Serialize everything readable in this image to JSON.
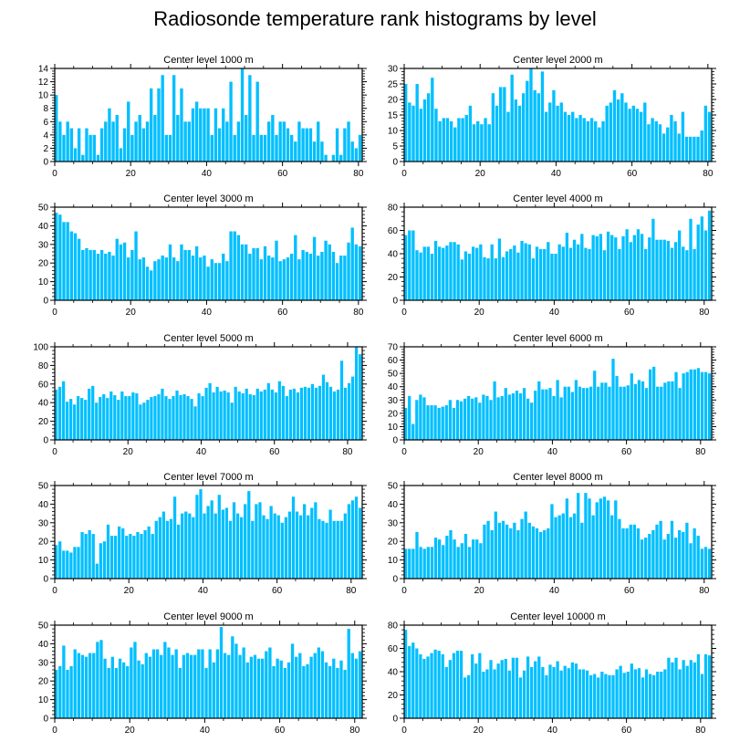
{
  "title": "Radiosonde temperature rank histograms by level",
  "bar_color": "#00bfff",
  "chart_data": [
    {
      "type": "bar",
      "title": "Center level 1000 m",
      "x_start": 0,
      "ylim": [
        0,
        14
      ],
      "yticks": [
        0,
        2,
        4,
        6,
        8,
        10,
        12,
        14
      ],
      "xticks": [
        0,
        20,
        40,
        60,
        80
      ],
      "values": [
        10,
        6,
        4,
        6,
        5,
        2,
        5,
        1,
        5,
        4,
        4,
        1,
        5,
        6,
        8,
        6,
        7,
        2,
        5,
        9,
        4,
        6,
        7,
        5,
        6,
        11,
        7,
        11,
        13,
        4,
        4,
        13,
        7,
        11,
        6,
        6,
        8,
        9,
        8,
        8,
        8,
        4,
        8,
        5,
        8,
        6,
        12,
        4,
        6,
        14,
        7,
        13,
        4,
        12,
        4,
        4,
        6,
        7,
        4,
        6,
        6,
        5,
        4,
        3,
        6,
        5,
        5,
        5,
        3,
        6,
        3,
        1,
        0,
        1,
        5,
        1,
        5,
        6,
        3,
        2,
        4
      ]
    },
    {
      "type": "bar",
      "title": "Center level 2000 m",
      "x_start": 0,
      "ylim": [
        0,
        30
      ],
      "yticks": [
        0,
        5,
        10,
        15,
        20,
        25,
        30
      ],
      "xticks": [
        0,
        20,
        40,
        60,
        80
      ],
      "values": [
        25,
        19,
        18,
        25,
        17,
        20,
        22,
        27,
        17,
        13,
        14,
        14,
        13,
        11,
        14,
        14,
        15,
        18,
        12,
        13,
        12,
        14,
        12,
        22,
        18,
        24,
        24,
        16,
        28,
        20,
        18,
        22,
        26,
        30,
        23,
        22,
        29,
        16,
        19,
        23,
        18,
        19,
        16,
        15,
        16,
        14,
        15,
        14,
        13,
        14,
        13,
        11,
        13,
        18,
        19,
        23,
        20,
        22,
        19,
        17,
        18,
        17,
        16,
        19,
        12,
        14,
        13,
        12,
        9,
        11,
        15,
        13,
        9,
        16,
        8,
        8,
        8,
        8,
        10,
        18,
        16
      ]
    },
    {
      "type": "bar",
      "title": "Center level 3000 m",
      "x_start": 0,
      "ylim": [
        0,
        50
      ],
      "yticks": [
        0,
        10,
        20,
        30,
        40,
        50
      ],
      "xticks": [
        0,
        20,
        40,
        60,
        80
      ],
      "values": [
        47,
        46,
        42,
        42,
        37,
        36,
        33,
        27,
        28,
        27,
        27,
        25,
        27,
        25,
        26,
        24,
        33,
        30,
        31,
        23,
        27,
        37,
        22,
        23,
        18,
        16,
        21,
        22,
        24,
        23,
        30,
        23,
        21,
        30,
        27,
        27,
        24,
        29,
        23,
        24,
        18,
        22,
        20,
        20,
        25,
        21,
        37,
        37,
        35,
        30,
        30,
        25,
        28,
        28,
        22,
        29,
        24,
        23,
        32,
        21,
        22,
        23,
        25,
        35,
        22,
        27,
        26,
        25,
        34,
        24,
        26,
        32,
        30,
        26,
        20,
        24,
        24,
        31,
        39,
        30,
        29
      ]
    },
    {
      "type": "bar",
      "title": "Center level 4000 m",
      "x_start": 0,
      "ylim": [
        0,
        80
      ],
      "yticks": [
        0,
        20,
        40,
        60,
        80
      ],
      "xticks": [
        0,
        20,
        40,
        60,
        80
      ],
      "values": [
        56,
        60,
        60,
        43,
        41,
        46,
        46,
        40,
        51,
        46,
        45,
        47,
        50,
        50,
        48,
        35,
        42,
        40,
        46,
        45,
        48,
        37,
        36,
        48,
        36,
        53,
        37,
        42,
        44,
        47,
        41,
        51,
        49,
        48,
        36,
        46,
        44,
        44,
        50,
        40,
        40,
        48,
        46,
        58,
        45,
        52,
        48,
        57,
        45,
        44,
        56,
        55,
        57,
        43,
        59,
        56,
        54,
        44,
        55,
        61,
        50,
        56,
        61,
        57,
        44,
        54,
        70,
        52,
        52,
        52,
        51,
        45,
        50,
        60,
        46,
        43,
        70,
        44,
        65,
        72,
        60,
        77
      ]
    },
    {
      "type": "bar",
      "title": "Center level 5000 m",
      "x_start": 0,
      "ylim": [
        0,
        100
      ],
      "yticks": [
        0,
        20,
        40,
        60,
        80,
        100
      ],
      "xticks": [
        0,
        20,
        40,
        60,
        80
      ],
      "values": [
        54,
        57,
        63,
        41,
        44,
        38,
        47,
        45,
        43,
        55,
        58,
        40,
        46,
        49,
        45,
        52,
        48,
        43,
        52,
        47,
        47,
        51,
        50,
        38,
        40,
        43,
        46,
        47,
        49,
        55,
        47,
        44,
        47,
        53,
        48,
        49,
        47,
        44,
        36,
        50,
        47,
        56,
        61,
        51,
        57,
        52,
        53,
        51,
        40,
        57,
        52,
        50,
        55,
        49,
        48,
        55,
        52,
        54,
        61,
        54,
        51,
        63,
        58,
        47,
        54,
        55,
        51,
        56,
        57,
        56,
        60,
        56,
        58,
        70,
        62,
        57,
        52,
        54,
        85,
        56,
        61,
        68,
        100,
        92
      ]
    },
    {
      "type": "bar",
      "title": "Center level 6000 m",
      "x_start": 0,
      "ylim": [
        0,
        70
      ],
      "yticks": [
        0,
        10,
        20,
        30,
        40,
        50,
        60,
        70
      ],
      "xticks": [
        0,
        20,
        40,
        60,
        80
      ],
      "values": [
        24,
        33,
        12,
        30,
        34,
        32,
        26,
        26,
        26,
        24,
        25,
        26,
        30,
        24,
        30,
        29,
        31,
        33,
        31,
        32,
        28,
        34,
        33,
        30,
        44,
        32,
        33,
        39,
        34,
        35,
        37,
        35,
        39,
        31,
        28,
        37,
        44,
        38,
        38,
        39,
        33,
        45,
        32,
        40,
        40,
        36,
        45,
        40,
        39,
        39,
        40,
        52,
        40,
        43,
        43,
        40,
        61,
        48,
        40,
        40,
        41,
        50,
        42,
        45,
        44,
        39,
        53,
        55,
        40,
        40,
        43,
        44,
        44,
        51,
        39,
        50,
        51,
        53,
        53,
        54,
        51,
        51,
        50
      ]
    },
    {
      "type": "bar",
      "title": "Center level 7000 m",
      "x_start": 0,
      "ylim": [
        0,
        50
      ],
      "yticks": [
        0,
        10,
        20,
        30,
        40,
        50
      ],
      "xticks": [
        0,
        20,
        40,
        60,
        80
      ],
      "values": [
        18,
        20,
        15,
        15,
        14,
        17,
        17,
        25,
        24,
        26,
        24,
        8,
        19,
        20,
        29,
        23,
        23,
        28,
        27,
        23,
        24,
        23,
        25,
        24,
        26,
        28,
        24,
        31,
        33,
        36,
        31,
        32,
        44,
        29,
        35,
        36,
        35,
        33,
        45,
        48,
        35,
        39,
        42,
        35,
        45,
        37,
        38,
        31,
        41,
        35,
        33,
        40,
        47,
        31,
        40,
        41,
        34,
        32,
        39,
        35,
        34,
        30,
        33,
        36,
        44,
        36,
        34,
        40,
        34,
        38,
        41,
        32,
        31,
        30,
        37,
        31,
        31,
        31,
        35,
        40,
        42,
        44,
        38
      ]
    },
    {
      "type": "bar",
      "title": "Center level 8000 m",
      "x_start": 0,
      "ylim": [
        0,
        50
      ],
      "yticks": [
        0,
        10,
        20,
        30,
        40,
        50
      ],
      "xticks": [
        0,
        20,
        40,
        60,
        80
      ],
      "values": [
        16,
        16,
        16,
        25,
        17,
        16,
        17,
        17,
        22,
        21,
        18,
        23,
        26,
        21,
        17,
        19,
        24,
        17,
        21,
        21,
        19,
        29,
        31,
        26,
        36,
        30,
        31,
        29,
        27,
        30,
        26,
        32,
        36,
        30,
        28,
        27,
        25,
        26,
        27,
        40,
        33,
        34,
        35,
        43,
        33,
        35,
        46,
        30,
        46,
        43,
        34,
        41,
        43,
        44,
        42,
        34,
        42,
        32,
        27,
        27,
        29,
        29,
        27,
        21,
        22,
        24,
        26,
        29,
        31,
        21,
        24,
        31,
        22,
        26,
        25,
        30,
        19,
        27,
        23,
        16,
        17,
        16
      ]
    },
    {
      "type": "bar",
      "title": "Center level 9000 m",
      "x_start": 0,
      "ylim": [
        0,
        50
      ],
      "yticks": [
        0,
        10,
        20,
        30,
        40,
        50
      ],
      "xticks": [
        0,
        20,
        40,
        60,
        80
      ],
      "values": [
        26,
        28,
        39,
        26,
        28,
        37,
        35,
        34,
        33,
        35,
        35,
        41,
        42,
        32,
        27,
        33,
        27,
        32,
        30,
        28,
        38,
        41,
        31,
        29,
        35,
        33,
        37,
        37,
        34,
        41,
        38,
        34,
        37,
        27,
        34,
        35,
        34,
        34,
        37,
        37,
        27,
        37,
        30,
        37,
        49,
        35,
        34,
        44,
        40,
        34,
        38,
        30,
        33,
        34,
        32,
        32,
        36,
        38,
        28,
        32,
        31,
        27,
        30,
        40,
        33,
        35,
        28,
        29,
        33,
        35,
        38,
        36,
        30,
        28,
        32,
        27,
        31,
        26,
        48,
        35,
        32,
        36
      ]
    },
    {
      "type": "bar",
      "title": "Center level 10000 m",
      "x_start": 0,
      "ylim": [
        0,
        80
      ],
      "yticks": [
        0,
        20,
        40,
        60,
        80
      ],
      "xticks": [
        0,
        20,
        40,
        60,
        80
      ],
      "values": [
        76,
        62,
        65,
        60,
        55,
        51,
        53,
        56,
        59,
        58,
        55,
        44,
        50,
        56,
        58,
        58,
        35,
        37,
        55,
        47,
        56,
        40,
        42,
        50,
        42,
        47,
        50,
        51,
        41,
        52,
        52,
        35,
        41,
        53,
        44,
        49,
        53,
        44,
        37,
        46,
        44,
        49,
        41,
        45,
        43,
        48,
        47,
        42,
        42,
        41,
        37,
        38,
        35,
        40,
        38,
        37,
        37,
        42,
        45,
        39,
        40,
        47,
        42,
        43,
        35,
        42,
        38,
        37,
        40,
        40,
        42,
        52,
        48,
        52,
        42,
        50,
        45,
        50,
        48,
        55,
        38,
        55,
        54
      ]
    }
  ]
}
